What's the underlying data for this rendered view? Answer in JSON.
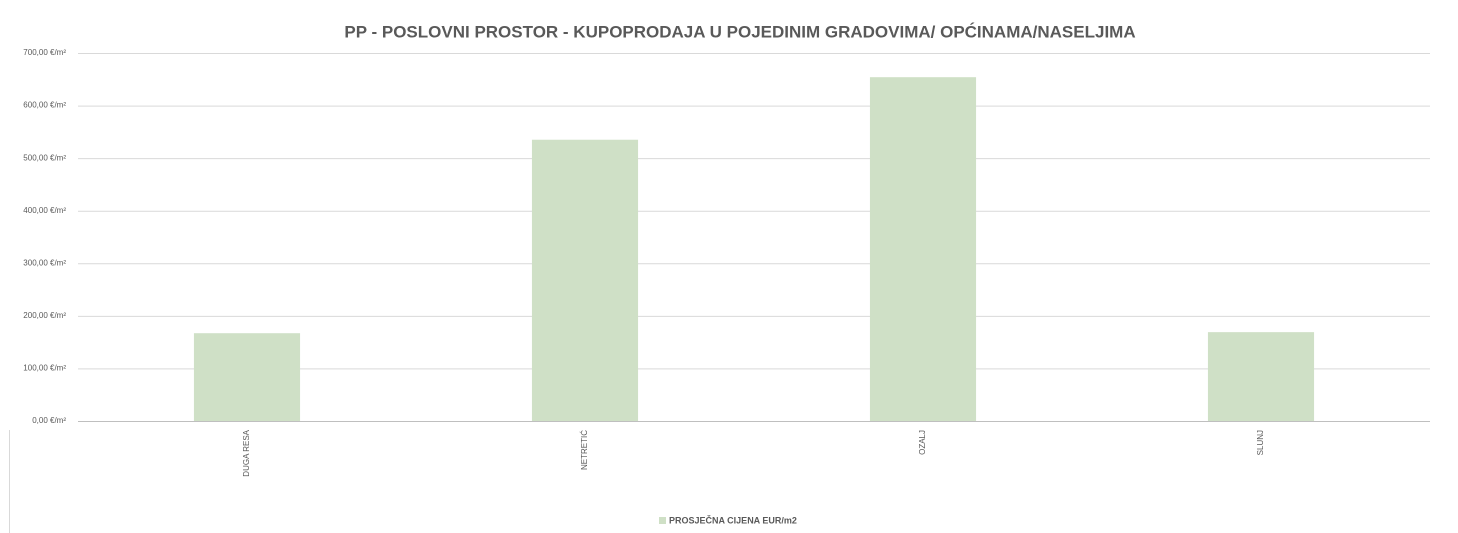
{
  "chart_data": {
    "type": "bar",
    "title": "PP - POSLOVNI PROSTOR - KUPOPRODAJA U POJEDINIM GRADOVIMA/ OPĆINAMA/NASELJIMA",
    "categories": [
      "DUGA RESA",
      "NETRETIĆ",
      "OZALJ",
      "SLUNJ"
    ],
    "series": [
      {
        "name": "PROSJEČNA CIJENA EUR/m2",
        "color": "#cfe0c6",
        "values": [
          167,
          535,
          654,
          169
        ]
      }
    ],
    "ylim": [
      0,
      700
    ],
    "yticks": [
      {
        "value": 0,
        "label": "0,00 €/m²"
      },
      {
        "value": 100,
        "label": "100,00 €/m²"
      },
      {
        "value": 200,
        "label": "200,00 €/m²"
      },
      {
        "value": 300,
        "label": "300,00 €/m²"
      },
      {
        "value": 400,
        "label": "400,00 €/m²"
      },
      {
        "value": 500,
        "label": "500,00 €/m²"
      },
      {
        "value": 600,
        "label": "600,00 €/m²"
      },
      {
        "value": 700,
        "label": "700,00 €/m²"
      }
    ],
    "grid": true,
    "legend": "bottom"
  }
}
